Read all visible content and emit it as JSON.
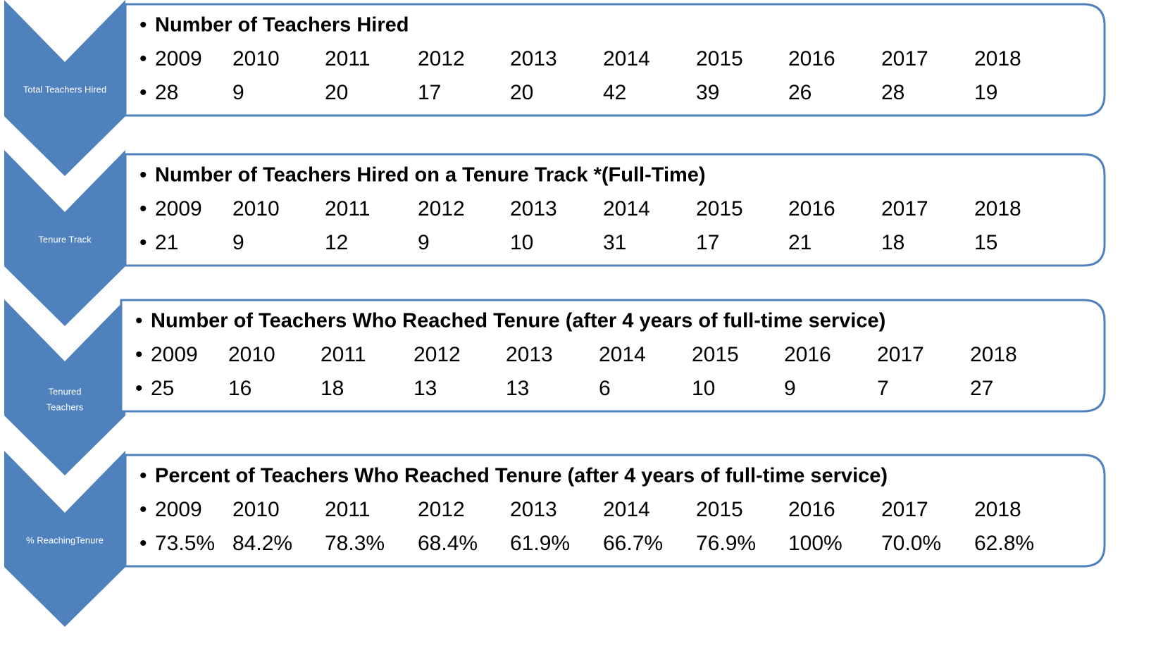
{
  "rows": [
    {
      "label": [
        "Total Teachers Hired"
      ],
      "title": "Number of Teachers Hired",
      "years": [
        "2009",
        "2010",
        "2011",
        "2012",
        "2013",
        "2014",
        "2015",
        "2016",
        "2017",
        "2018"
      ],
      "values": [
        "28",
        "9",
        "20",
        "17",
        "20",
        "42",
        "39",
        "26",
        "28",
        "19"
      ]
    },
    {
      "label": [
        "Tenure Track"
      ],
      "title": "Number of Teachers Hired on a Tenure Track *(Full-Time)",
      "years": [
        "2009",
        "2010",
        "2011",
        "2012",
        "2013",
        "2014",
        "2015",
        "2016",
        "2017",
        "2018"
      ],
      "values": [
        "21",
        "9",
        "12",
        "9",
        "10",
        "31",
        "17",
        "21",
        "18",
        "15"
      ]
    },
    {
      "label": [
        "Tenured",
        "Teachers"
      ],
      "title": "Number of Teachers Who Reached Tenure (after 4 years of full-time service)",
      "years": [
        "2009",
        "2010",
        "2011",
        "2012",
        "2013",
        "2014",
        "2015",
        "2016",
        "2017",
        "2018"
      ],
      "values": [
        "25",
        "16",
        "18",
        "13",
        "13",
        "6",
        "10",
        "9",
        "7",
        "27"
      ]
    },
    {
      "label": [
        "% ReachingTenure"
      ],
      "title": "Percent  of Teachers Who Reached Tenure (after 4 years of full-time service)",
      "years": [
        "2009",
        "2010",
        "2011",
        "2012",
        "2013",
        "2014",
        "2015",
        "2016",
        "2017",
        "2018"
      ],
      "values": [
        "73.5%",
        "84.2%",
        "78.3%",
        "68.4%",
        "61.9%",
        "66.7%",
        "76.9%",
        "100%",
        "70.0%",
        "62.8%"
      ]
    }
  ]
}
